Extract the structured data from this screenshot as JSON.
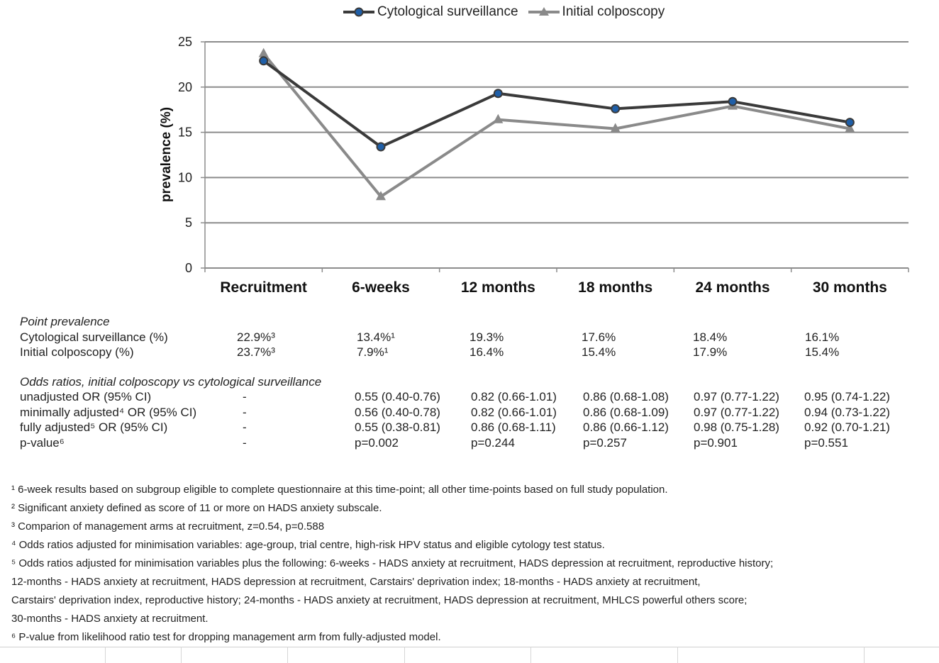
{
  "chart_data": {
    "type": "line",
    "categories": [
      "Recruitment",
      "6-weeks",
      "12 months",
      "18 months",
      "24 months",
      "30 months"
    ],
    "series": [
      {
        "name": "Cytological surveillance",
        "values": [
          22.9,
          13.4,
          19.3,
          17.6,
          18.4,
          16.1
        ],
        "color": "#3a3a3a",
        "marker": "circle",
        "marker_color": "#1f5fa8"
      },
      {
        "name": "Initial colposcopy",
        "values": [
          23.7,
          7.9,
          16.4,
          15.4,
          17.9,
          15.4
        ],
        "color": "#8a8a8a",
        "marker": "triangle"
      }
    ],
    "ylabel": "prevalence (%)",
    "xlabel": "",
    "title": "",
    "ylim": [
      0,
      25
    ],
    "yticks": [
      0,
      5,
      10,
      15,
      20,
      25
    ],
    "grid": true,
    "legend_position": "top-center"
  },
  "table": {
    "point_prevalence_title": "Point prevalence",
    "pp_rows": [
      {
        "label": "Cytological surveillance (%)",
        "cells": [
          "22.9%³",
          "13.4%¹",
          "19.3%",
          "17.6%",
          "18.4%",
          "16.1%"
        ]
      },
      {
        "label": "Initial colposcopy (%)",
        "cells": [
          "23.7%³",
          "7.9%¹",
          "16.4%",
          "15.4%",
          "17.9%",
          "15.4%"
        ]
      }
    ],
    "odds_title": "Odds ratios, initial colposcopy vs cytological surveillance",
    "or_rows": [
      {
        "label": "unadjusted OR (95% CI)",
        "cells": [
          "-",
          "0.55 (0.40-0.76)",
          "0.82 (0.66-1.01)",
          "0.86 (0.68-1.08)",
          "0.97 (0.77-1.22)",
          "0.95 (0.74-1.22)"
        ]
      },
      {
        "label": "minimally adjusted⁴ OR (95% CI)",
        "cells": [
          "-",
          "0.56 (0.40-0.78)",
          "0.82 (0.66-1.01)",
          "0.86 (0.68-1.09)",
          "0.97 (0.77-1.22)",
          "0.94 (0.73-1.22)"
        ]
      },
      {
        "label": "fully adjusted⁵ OR (95% CI)",
        "cells": [
          "-",
          "0.55 (0.38-0.81)",
          "0.86 (0.68-1.11)",
          "0.86 (0.66-1.12)",
          "0.98 (0.75-1.28)",
          "0.92 (0.70-1.21)"
        ]
      },
      {
        "label": "p-value⁶",
        "cells": [
          "-",
          "p=0.002",
          "p=0.244",
          "p=0.257",
          "p=0.901",
          "p=0.551"
        ]
      }
    ]
  },
  "footnotes": [
    "¹ 6-week results based on subgroup eligible to complete questionnaire at this time-point; all other time-points based on full study population.",
    "² Significant anxiety defined as score of 11 or more on HADS anxiety subscale.",
    "³ Comparion of management arms at recruitment, z=0.54, p=0.588",
    "⁴ Odds ratios adjusted for minimisation variables: age-group, trial centre, high-risk HPV status and eligible cytology test status.",
    "⁵ Odds ratios adjusted for minimisation variables plus the following: 6-weeks - HADS anxiety at recruitment, HADS depression at recruitment, reproductive history;",
    "12-months - HADS anxiety at recruitment, HADS depression at recruitment, Carstairs' deprivation index; 18-months - HADS anxiety at recruitment,",
    "Carstairs' deprivation index, reproductive history; 24-months - HADS anxiety at recruitment, HADS depression at recruitment, MHLCS powerful others score;",
    "30-months - HADS anxiety at recruitment.",
    "⁶ P-value from likelihood ratio test for dropping management arm from fully-adjusted model."
  ]
}
